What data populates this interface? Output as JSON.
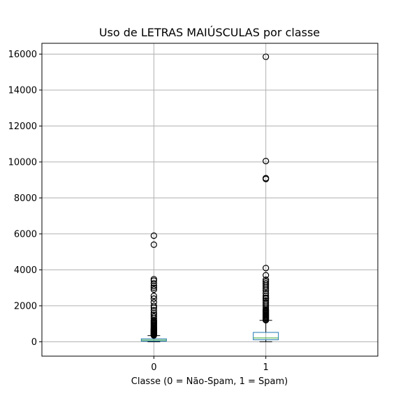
{
  "chart_data": {
    "type": "boxplot",
    "title": "Uso de LETRAS MAIÚSCULAS por classe",
    "xlabel": "Classe (0 = Não-Spam, 1 = Spam)",
    "ylabel": "",
    "categories": [
      "0",
      "1"
    ],
    "ylim": [
      -800,
      16600
    ],
    "yticks": [
      0,
      2000,
      4000,
      6000,
      8000,
      10000,
      12000,
      14000,
      16000
    ],
    "grid": true,
    "colors": {
      "box": "#1f77b4",
      "median": "#2ca02c",
      "whisker": "#000000",
      "flier": "#000000",
      "grid": "#b0b0b0"
    },
    "boxes": [
      {
        "category": "0",
        "whislo": 1,
        "q1": 35,
        "median": 95,
        "q3": 165,
        "whishi": 340,
        "fliers": [
          350,
          380,
          400,
          420,
          450,
          480,
          500,
          520,
          550,
          580,
          600,
          620,
          650,
          680,
          700,
          720,
          760,
          800,
          850,
          900,
          950,
          1000,
          1050,
          1100,
          1150,
          1200,
          1300,
          1400,
          1500,
          1600,
          1750,
          1900,
          2000,
          2200,
          2400,
          2550,
          2900,
          3000,
          3100,
          3250,
          3400,
          3480,
          5400,
          5900
        ]
      },
      {
        "category": "1",
        "whislo": 1,
        "q1": 110,
        "median": 210,
        "q3": 520,
        "whishi": 1190,
        "fliers": [
          1200,
          1250,
          1300,
          1350,
          1400,
          1450,
          1500,
          1550,
          1600,
          1650,
          1700,
          1750,
          1800,
          1900,
          2000,
          2100,
          2200,
          2300,
          2400,
          2450,
          2550,
          2700,
          2850,
          2950,
          3050,
          3150,
          3250,
          3350,
          3450,
          3700,
          4100,
          9050,
          9100,
          10050,
          15850
        ]
      }
    ]
  }
}
